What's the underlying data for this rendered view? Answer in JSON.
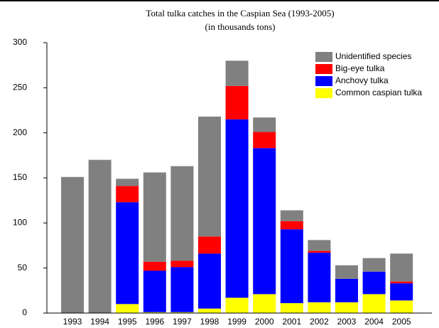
{
  "chart_data": {
    "type": "stacked_bar",
    "title": "Total tulka catches in the Caspian Sea (1993-2005)",
    "subtitle": "(in thousands tons)",
    "categories": [
      "1993",
      "1994",
      "1995",
      "1996",
      "1997",
      "1998",
      "1999",
      "2000",
      "2001",
      "2002",
      "2003",
      "2004",
      "2005"
    ],
    "series": [
      {
        "name": "Common caspian tulka",
        "color": "#ffff00",
        "values": [
          0,
          0,
          10,
          1,
          1,
          5,
          17,
          21,
          11,
          12,
          12,
          21,
          14
        ]
      },
      {
        "name": "Anchovy tulka",
        "color": "#0000ff",
        "values": [
          0,
          0,
          113,
          46,
          50,
          61,
          198,
          162,
          82,
          55,
          26,
          25,
          19
        ]
      },
      {
        "name": "Big-eye tulka",
        "color": "#ff0000",
        "values": [
          0,
          0,
          18,
          10,
          7,
          19,
          37,
          18,
          9,
          2,
          0,
          0,
          2
        ]
      },
      {
        "name": "Unidentified species",
        "color": "#808080",
        "values": [
          151,
          170,
          8,
          99,
          105,
          133,
          28,
          16,
          12,
          12,
          15,
          15,
          31
        ]
      }
    ],
    "ylim": [
      0,
      300
    ],
    "yticks": [
      0,
      50,
      100,
      150,
      200,
      250,
      300
    ],
    "legend": "upper right"
  }
}
